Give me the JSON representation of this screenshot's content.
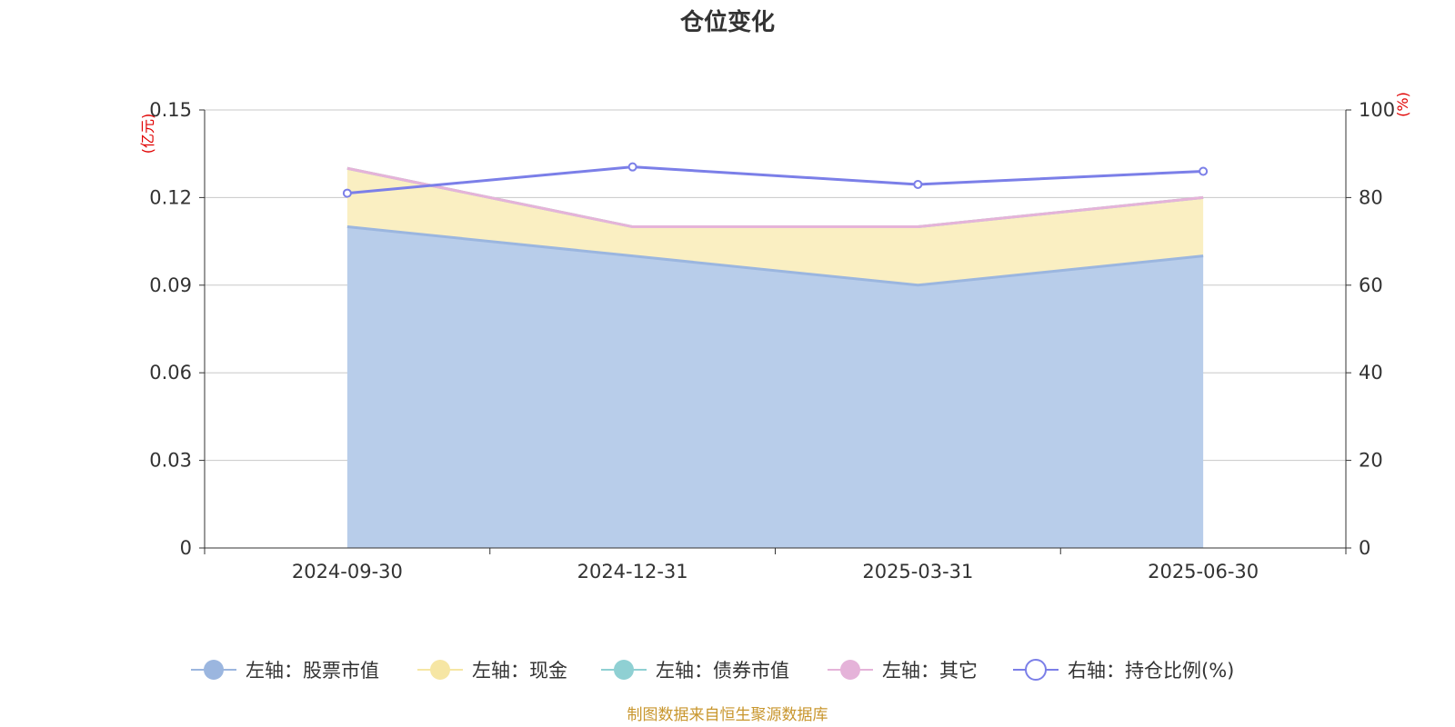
{
  "chart_data": {
    "type": "area",
    "title": "仓位变化",
    "categories": [
      "2024-09-30",
      "2024-12-31",
      "2025-03-31",
      "2025-06-30"
    ],
    "left_axis": {
      "unit": "(亿元)",
      "ylim": [
        0,
        0.15
      ],
      "ticks": [
        "0",
        "0.03",
        "0.06",
        "0.09",
        "0.12",
        "0.15"
      ]
    },
    "right_axis": {
      "unit": "(%)",
      "ylim": [
        0,
        100
      ],
      "ticks": [
        "0",
        "20",
        "40",
        "60",
        "80",
        "100"
      ]
    },
    "series": [
      {
        "name": "左轴：股票市值",
        "axis": "left",
        "stack": true,
        "values": [
          0.11,
          0.1,
          0.09,
          0.1
        ],
        "color": "#9bb6df",
        "fill": "#b8cdea"
      },
      {
        "name": "左轴：现金",
        "axis": "left",
        "stack": true,
        "values": [
          0.02,
          0.01,
          0.02,
          0.02
        ],
        "color": "#f6e6a4",
        "fill": "#faefc2"
      },
      {
        "name": "左轴：债券市值",
        "axis": "left",
        "stack": true,
        "values": [
          0,
          0,
          0,
          0
        ],
        "color": "#8fd0d3",
        "fill": "#8fd0d3"
      },
      {
        "name": "左轴：其它",
        "axis": "left",
        "stack": true,
        "values": [
          0,
          0,
          0,
          0
        ],
        "color": "#e5b3d9",
        "fill": "#e5b3d9"
      },
      {
        "name": "右轴：持仓比例(%)",
        "axis": "right",
        "type": "line",
        "values": [
          81,
          87,
          83,
          86
        ],
        "color": "#7b7fe8"
      }
    ],
    "grid": true,
    "legend_position": "bottom",
    "source": "制图数据来自恒生聚源数据库"
  }
}
